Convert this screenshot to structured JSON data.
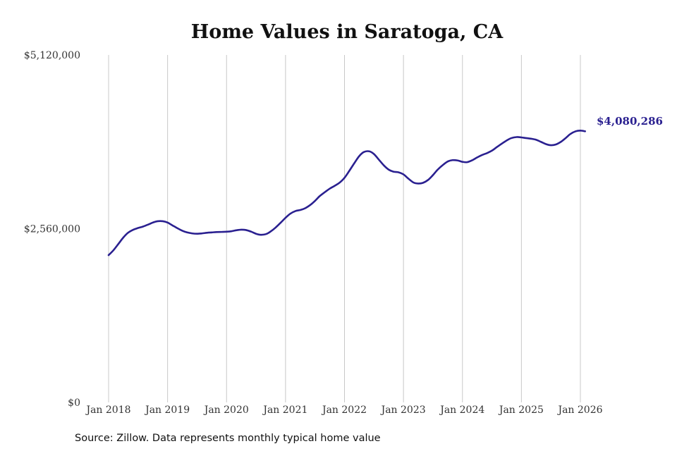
{
  "chart_data": {
    "type": "line",
    "title": "Home Values in Saratoga, CA",
    "xlabel": "",
    "ylabel": "",
    "ylim": [
      0,
      5120000
    ],
    "y_ticks": [
      "$0",
      "$2,560,000",
      "$5,120,000"
    ],
    "y_tick_values": [
      0,
      2560000,
      5120000
    ],
    "x_ticks": [
      "Jan 2018",
      "Jan 2019",
      "Jan 2020",
      "Jan 2021",
      "Jan 2022",
      "Jan 2023",
      "Jan 2024",
      "Jan 2025",
      "Jan 2026"
    ],
    "x_tick_values": [
      2018,
      2019,
      2020,
      2021,
      2022,
      2023,
      2024,
      2025,
      2026
    ],
    "xlim": [
      2018,
      2026.1
    ],
    "vertical_grid": true,
    "end_label": "$4,080,286",
    "series": [
      {
        "color": "#2a2090",
        "points": [
          [
            2018.0,
            2170000
          ],
          [
            2018.08,
            2240000
          ],
          [
            2018.17,
            2340000
          ],
          [
            2018.25,
            2430000
          ],
          [
            2018.33,
            2500000
          ],
          [
            2018.42,
            2545000
          ],
          [
            2018.5,
            2570000
          ],
          [
            2018.58,
            2590000
          ],
          [
            2018.67,
            2620000
          ],
          [
            2018.75,
            2650000
          ],
          [
            2018.83,
            2670000
          ],
          [
            2018.92,
            2670000
          ],
          [
            2019.0,
            2650000
          ],
          [
            2019.08,
            2610000
          ],
          [
            2019.17,
            2565000
          ],
          [
            2019.25,
            2530000
          ],
          [
            2019.33,
            2505000
          ],
          [
            2019.42,
            2490000
          ],
          [
            2019.5,
            2485000
          ],
          [
            2019.58,
            2490000
          ],
          [
            2019.67,
            2500000
          ],
          [
            2019.75,
            2505000
          ],
          [
            2019.83,
            2510000
          ],
          [
            2019.92,
            2512000
          ],
          [
            2020.0,
            2515000
          ],
          [
            2020.08,
            2522000
          ],
          [
            2020.17,
            2537000
          ],
          [
            2020.25,
            2545000
          ],
          [
            2020.33,
            2540000
          ],
          [
            2020.42,
            2515000
          ],
          [
            2020.5,
            2485000
          ],
          [
            2020.58,
            2470000
          ],
          [
            2020.67,
            2480000
          ],
          [
            2020.75,
            2520000
          ],
          [
            2020.83,
            2575000
          ],
          [
            2020.92,
            2650000
          ],
          [
            2021.0,
            2720000
          ],
          [
            2021.08,
            2780000
          ],
          [
            2021.17,
            2820000
          ],
          [
            2021.25,
            2835000
          ],
          [
            2021.33,
            2860000
          ],
          [
            2021.42,
            2910000
          ],
          [
            2021.5,
            2970000
          ],
          [
            2021.58,
            3040000
          ],
          [
            2021.67,
            3100000
          ],
          [
            2021.75,
            3150000
          ],
          [
            2021.83,
            3190000
          ],
          [
            2021.92,
            3240000
          ],
          [
            2022.0,
            3310000
          ],
          [
            2022.08,
            3410000
          ],
          [
            2022.17,
            3530000
          ],
          [
            2022.25,
            3630000
          ],
          [
            2022.33,
            3690000
          ],
          [
            2022.42,
            3700000
          ],
          [
            2022.5,
            3660000
          ],
          [
            2022.58,
            3580000
          ],
          [
            2022.67,
            3490000
          ],
          [
            2022.75,
            3430000
          ],
          [
            2022.83,
            3400000
          ],
          [
            2022.92,
            3390000
          ],
          [
            2023.0,
            3360000
          ],
          [
            2023.08,
            3300000
          ],
          [
            2023.17,
            3240000
          ],
          [
            2023.25,
            3225000
          ],
          [
            2023.33,
            3235000
          ],
          [
            2023.42,
            3280000
          ],
          [
            2023.5,
            3350000
          ],
          [
            2023.58,
            3430000
          ],
          [
            2023.67,
            3500000
          ],
          [
            2023.75,
            3550000
          ],
          [
            2023.83,
            3570000
          ],
          [
            2023.92,
            3565000
          ],
          [
            2024.0,
            3545000
          ],
          [
            2024.08,
            3540000
          ],
          [
            2024.17,
            3570000
          ],
          [
            2024.25,
            3610000
          ],
          [
            2024.33,
            3645000
          ],
          [
            2024.42,
            3675000
          ],
          [
            2024.5,
            3710000
          ],
          [
            2024.58,
            3760000
          ],
          [
            2024.67,
            3815000
          ],
          [
            2024.75,
            3860000
          ],
          [
            2024.83,
            3895000
          ],
          [
            2024.92,
            3910000
          ],
          [
            2025.0,
            3905000
          ],
          [
            2025.08,
            3895000
          ],
          [
            2025.17,
            3885000
          ],
          [
            2025.25,
            3870000
          ],
          [
            2025.33,
            3840000
          ],
          [
            2025.42,
            3805000
          ],
          [
            2025.5,
            3790000
          ],
          [
            2025.58,
            3800000
          ],
          [
            2025.67,
            3840000
          ],
          [
            2025.75,
            3895000
          ],
          [
            2025.83,
            3955000
          ],
          [
            2025.92,
            3995000
          ],
          [
            2026.0,
            4005000
          ],
          [
            2026.08,
            3995000
          ]
        ]
      }
    ]
  },
  "source": "Source: Zillow. Data represents monthly typical home value",
  "colors": {
    "line": "#2a2090",
    "end_label": "#2a2090",
    "grid": "#c8c8c8"
  }
}
